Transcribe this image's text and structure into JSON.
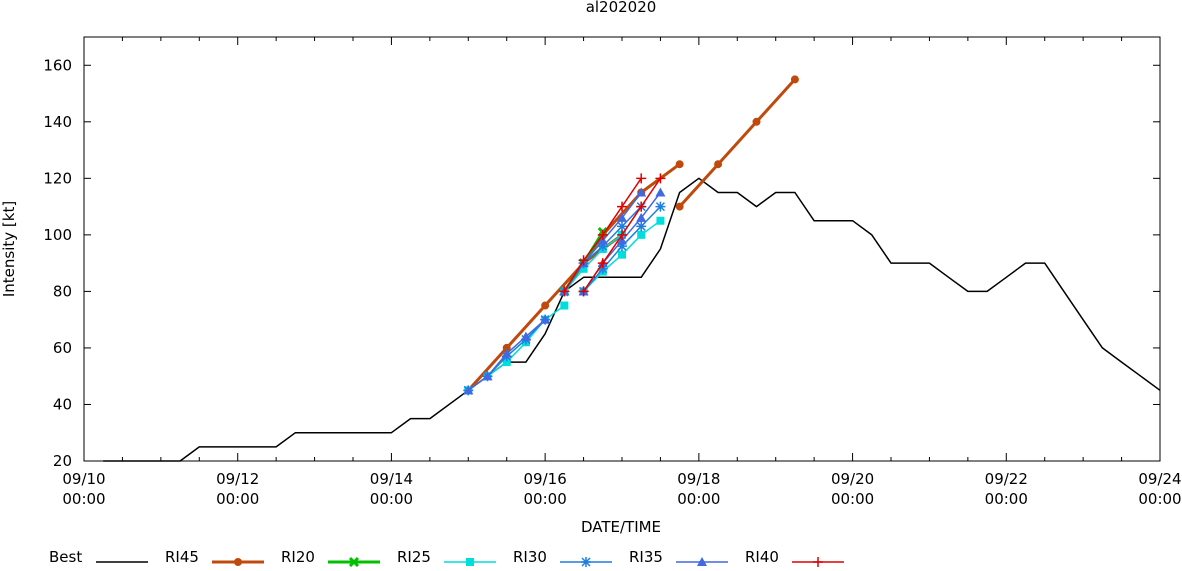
{
  "chart_data": {
    "type": "line",
    "title": "al202020",
    "xlabel": "DATE/TIME",
    "ylabel": "Intensity [kt]",
    "ylim": [
      20,
      170
    ],
    "yticks": [
      20,
      40,
      60,
      80,
      100,
      120,
      140,
      160
    ],
    "xlim_hours": [
      0,
      336
    ],
    "xticks": [
      {
        "hour": 0,
        "date": "09/10",
        "time": "00:00"
      },
      {
        "hour": 48,
        "date": "09/12",
        "time": "00:00"
      },
      {
        "hour": 96,
        "date": "09/14",
        "time": "00:00"
      },
      {
        "hour": 144,
        "date": "09/16",
        "time": "00:00"
      },
      {
        "hour": 192,
        "date": "09/18",
        "time": "00:00"
      },
      {
        "hour": 240,
        "date": "09/20",
        "time": "00:00"
      },
      {
        "hour": 288,
        "date": "09/22",
        "time": "00:00"
      },
      {
        "hour": 336,
        "date": "09/24",
        "time": "00:00"
      }
    ],
    "x_units": "hours since 09/10 00:00",
    "legend_position": "bottom",
    "series": [
      {
        "name": "Best",
        "color": "#000000",
        "marker": "none",
        "width": 1.5,
        "tracks": [
          [
            [
              6,
              20
            ],
            [
              30,
              20
            ],
            [
              36,
              25
            ],
            [
              60,
              25
            ],
            [
              66,
              30
            ],
            [
              96,
              30
            ],
            [
              102,
              35
            ],
            [
              108,
              35
            ],
            [
              120,
              45
            ],
            [
              126,
              50
            ],
            [
              132,
              55
            ],
            [
              138,
              55
            ],
            [
              144,
              65
            ],
            [
              150,
              80
            ],
            [
              156,
              85
            ],
            [
              162,
              85
            ],
            [
              168,
              85
            ],
            [
              174,
              85
            ],
            [
              180,
              95
            ],
            [
              186,
              115
            ],
            [
              192,
              120
            ],
            [
              198,
              115
            ],
            [
              204,
              115
            ],
            [
              210,
              110
            ],
            [
              216,
              115
            ],
            [
              222,
              115
            ],
            [
              228,
              105
            ],
            [
              234,
              105
            ],
            [
              240,
              105
            ],
            [
              246,
              100
            ],
            [
              252,
              90
            ],
            [
              258,
              90
            ],
            [
              264,
              90
            ],
            [
              270,
              85
            ],
            [
              276,
              80
            ],
            [
              282,
              80
            ],
            [
              288,
              85
            ],
            [
              294,
              90
            ],
            [
              300,
              90
            ],
            [
              306,
              80
            ],
            [
              312,
              70
            ],
            [
              318,
              60
            ],
            [
              324,
              55
            ],
            [
              330,
              50
            ],
            [
              336,
              45
            ]
          ]
        ]
      },
      {
        "name": "RI45",
        "color": "#c04a0c",
        "marker": "circle",
        "width": 3,
        "tracks": [
          [
            [
              120,
              45
            ],
            [
              132,
              60
            ],
            [
              144,
              75
            ],
            [
              156,
              90
            ],
            [
              168,
              100
            ]
          ],
          [
            [
              150,
              80
            ],
            [
              162,
              100
            ],
            [
              174,
              115
            ],
            [
              186,
              125
            ]
          ],
          [
            [
              186,
              110
            ],
            [
              198,
              125
            ],
            [
              210,
              140
            ],
            [
              222,
              155
            ]
          ]
        ]
      },
      {
        "name": "RI20",
        "color": "#00c000",
        "marker": "x",
        "width": 3,
        "tracks": [
          [
            [
              150,
              80
            ],
            [
              156,
              90
            ],
            [
              162,
              101
            ]
          ]
        ]
      },
      {
        "name": "RI25",
        "color": "#00dddd",
        "marker": "square",
        "width": 1.5,
        "tracks": [
          [
            [
              120,
              45
            ],
            [
              126,
              50
            ],
            [
              132,
              55
            ],
            [
              138,
              62
            ],
            [
              144,
              70
            ],
            [
              150,
              75
            ]
          ],
          [
            [
              150,
              80
            ],
            [
              156,
              88
            ],
            [
              162,
              95
            ],
            [
              168,
              100
            ]
          ],
          [
            [
              156,
              80
            ],
            [
              162,
              87
            ],
            [
              168,
              93
            ],
            [
              174,
              100
            ],
            [
              180,
              105
            ]
          ]
        ]
      },
      {
        "name": "RI30",
        "color": "#1e7fe0",
        "marker": "star",
        "width": 1.5,
        "tracks": [
          [
            [
              120,
              45
            ],
            [
              126,
              50
            ],
            [
              132,
              57
            ],
            [
              138,
              63
            ],
            [
              144,
              70
            ]
          ],
          [
            [
              150,
              80
            ],
            [
              156,
              90
            ],
            [
              162,
              96
            ],
            [
              168,
              103
            ],
            [
              174,
              110
            ]
          ],
          [
            [
              156,
              80
            ],
            [
              162,
              88
            ],
            [
              168,
              96
            ],
            [
              174,
              103
            ],
            [
              180,
              110
            ]
          ]
        ]
      },
      {
        "name": "RI35",
        "color": "#4169e1",
        "marker": "triangle",
        "width": 1.5,
        "tracks": [
          [
            [
              120,
              45
            ],
            [
              126,
              50
            ],
            [
              132,
              58
            ],
            [
              138,
              64
            ],
            [
              144,
              70
            ]
          ],
          [
            [
              150,
              80
            ],
            [
              156,
              90
            ],
            [
              162,
              98
            ],
            [
              168,
              106
            ],
            [
              174,
              115
            ]
          ],
          [
            [
              156,
              80
            ],
            [
              162,
              90
            ],
            [
              168,
              98
            ],
            [
              174,
              106
            ],
            [
              180,
              115
            ]
          ]
        ]
      },
      {
        "name": "RI40",
        "color": "#e00000",
        "marker": "plus",
        "width": 1.5,
        "tracks": [
          [
            [
              150,
              80
            ],
            [
              156,
              91
            ],
            [
              162,
              100
            ],
            [
              168,
              110
            ],
            [
              174,
              120
            ]
          ],
          [
            [
              156,
              80
            ],
            [
              162,
              90
            ],
            [
              168,
              100
            ],
            [
              174,
              110
            ],
            [
              180,
              120
            ]
          ]
        ]
      }
    ]
  }
}
